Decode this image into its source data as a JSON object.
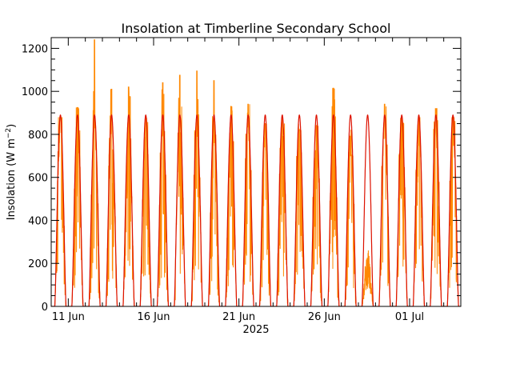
{
  "chart_data": {
    "type": "line",
    "title": "Insolation at Timberline Secondary School",
    "ylabel": "Insolation (W m",
    "ylabel_sup": "−2",
    "ylabel_close": ")",
    "year_label": "2025",
    "x_start": "2025-06-10",
    "x_end": "2025-07-04",
    "ylim": [
      0,
      1250
    ],
    "yticks": [
      0,
      200,
      400,
      600,
      800,
      1000,
      1200
    ],
    "xticks": [
      {
        "date": "2025-06-11",
        "label": "11 Jun"
      },
      {
        "date": "2025-06-16",
        "label": "16 Jun"
      },
      {
        "date": "2025-06-21",
        "label": "21 Jun"
      },
      {
        "date": "2025-06-26",
        "label": "26 Jun"
      },
      {
        "date": "2025-07-01",
        "label": "01 Jul"
      }
    ],
    "series": [
      {
        "role": "clear-sky",
        "color": "#dd1100",
        "daily_peak": 890
      },
      {
        "role": "measured",
        "color": "#ff8800",
        "daily_peaks": [
          {
            "date": "2025-06-10",
            "peak": 880
          },
          {
            "date": "2025-06-11",
            "peak": 925
          },
          {
            "date": "2025-06-12",
            "peak": 1240
          },
          {
            "date": "2025-06-13",
            "peak": 1010
          },
          {
            "date": "2025-06-14",
            "peak": 1020
          },
          {
            "date": "2025-06-15",
            "peak": 880
          },
          {
            "date": "2025-06-16",
            "peak": 1040
          },
          {
            "date": "2025-06-17",
            "peak": 1075
          },
          {
            "date": "2025-06-18",
            "peak": 1095
          },
          {
            "date": "2025-06-19",
            "peak": 1050
          },
          {
            "date": "2025-06-20",
            "peak": 930
          },
          {
            "date": "2025-06-21",
            "peak": 940
          },
          {
            "date": "2025-06-22",
            "peak": 850
          },
          {
            "date": "2025-06-23",
            "peak": 880
          },
          {
            "date": "2025-06-24",
            "peak": 820
          },
          {
            "date": "2025-06-25",
            "peak": 840
          },
          {
            "date": "2025-06-26",
            "peak": 1015
          },
          {
            "date": "2025-06-27",
            "peak": 700
          },
          {
            "date": "2025-06-28",
            "peak": 270
          },
          {
            "date": "2025-06-29",
            "peak": 940
          },
          {
            "date": "2025-06-30",
            "peak": 880
          },
          {
            "date": "2025-07-01",
            "peak": 880
          },
          {
            "date": "2025-07-02",
            "peak": 920
          },
          {
            "date": "2025-07-03",
            "peak": 880
          }
        ]
      }
    ],
    "grid": false,
    "legend": "none"
  }
}
